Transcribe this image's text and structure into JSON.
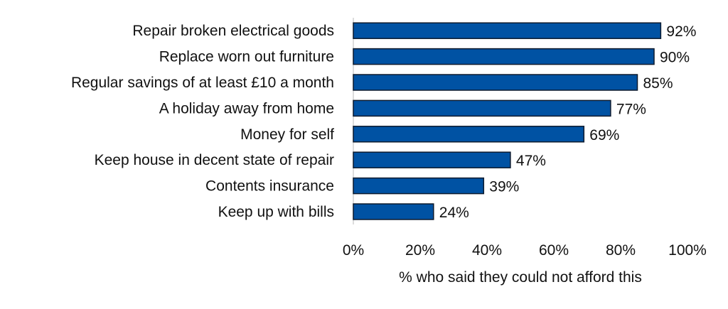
{
  "chart_data": {
    "type": "bar",
    "orientation": "horizontal",
    "title": "",
    "categories": [
      "Repair broken electrical goods",
      "Replace worn out furniture",
      "Regular savings of at least £10 a month",
      "A holiday away from home",
      "Money for self",
      "Keep house in decent state of repair",
      "Contents insurance",
      "Keep up with bills"
    ],
    "values": [
      92,
      90,
      85,
      77,
      69,
      47,
      39,
      24
    ],
    "value_labels": [
      "92%",
      "90%",
      "85%",
      "77%",
      "69%",
      "47%",
      "39%",
      "24%"
    ],
    "xlabel": "% who said they could not afford this",
    "ylabel": "",
    "xlim": [
      0,
      100
    ],
    "x_ticks": [
      "0%",
      "20%",
      "40%",
      "60%",
      "80%",
      "100%"
    ],
    "grid": false,
    "bar_color": "#0052A3"
  }
}
